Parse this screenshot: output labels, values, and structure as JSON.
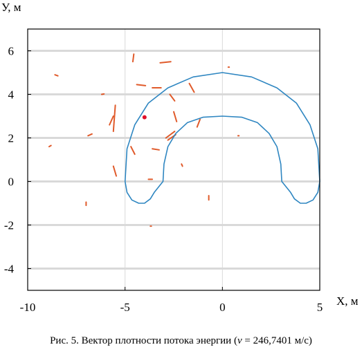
{
  "chart_data": {
    "type": "line",
    "title": "",
    "xlabel": "X, м",
    "ylabel": "У, м",
    "xlim": [
      -10,
      5
    ],
    "ylim": [
      -5,
      7
    ],
    "xticks": [
      -10,
      -5,
      0,
      5
    ],
    "yticks": [
      6,
      4,
      2,
      0,
      -2,
      -4
    ],
    "xtick_labels": [
      "-10",
      "-5",
      "0",
      "5"
    ],
    "ytick_labels": [
      "6",
      "4",
      "2",
      "0",
      "-2",
      "-4"
    ],
    "grid": true,
    "colors": {
      "contour": "#2e86c1",
      "vectors": "#e05a2a",
      "source": "#e0102a",
      "grid": "#d9d9d9"
    },
    "series": [
      {
        "role": "horseshoe-contour",
        "x": [
          -5,
          -4.9,
          -4.65,
          -4.3,
          -4.0,
          -3.7,
          -3.5,
          -3.05,
          -3.0,
          -2.8,
          -2.4,
          -1.8,
          -1.0,
          0,
          1.0,
          1.8,
          2.4,
          2.8,
          3.0,
          3.05,
          3.5,
          3.7,
          4.0,
          4.3,
          4.65,
          4.9,
          5.0,
          4.9,
          4.5,
          3.8,
          2.8,
          1.5,
          0,
          -1.5,
          -2.8,
          -3.8,
          -4.5,
          -4.9,
          -5.0
        ],
        "y": [
          0,
          -0.5,
          -0.85,
          -1.0,
          -1.0,
          -0.8,
          -0.5,
          0,
          0.8,
          1.6,
          2.2,
          2.7,
          2.95,
          3.0,
          2.95,
          2.7,
          2.2,
          1.6,
          0.8,
          0,
          -0.5,
          -0.8,
          -1.0,
          -1.0,
          -0.85,
          -0.5,
          0,
          1.5,
          2.6,
          3.6,
          4.3,
          4.8,
          5.0,
          4.8,
          4.3,
          3.6,
          2.6,
          1.5,
          0
        ]
      }
    ],
    "source_point": {
      "x": -4.0,
      "y": 2.95
    },
    "vectors": [
      {
        "x": -8.6,
        "y": 4.9,
        "dx": 0.15,
        "dy": -0.05
      },
      {
        "x": -4.6,
        "y": 5.5,
        "dx": 0.05,
        "dy": 0.35
      },
      {
        "x": -3.2,
        "y": 5.45,
        "dx": 0.55,
        "dy": 0.05
      },
      {
        "x": -4.4,
        "y": 4.45,
        "dx": 0.45,
        "dy": -0.05
      },
      {
        "x": -3.6,
        "y": 4.3,
        "dx": 0.45,
        "dy": 0.0
      },
      {
        "x": -1.7,
        "y": 4.5,
        "dx": 0.25,
        "dy": -0.4
      },
      {
        "x": -2.7,
        "y": 4.0,
        "dx": 0.25,
        "dy": -0.3
      },
      {
        "x": -6.2,
        "y": 4.0,
        "dx": 0.12,
        "dy": 0.02
      },
      {
        "x": -5.6,
        "y": 2.3,
        "dx": 0.1,
        "dy": 1.2
      },
      {
        "x": -5.8,
        "y": 2.6,
        "dx": 0.2,
        "dy": 0.4
      },
      {
        "x": -2.5,
        "y": 3.2,
        "dx": 0.15,
        "dy": -0.45
      },
      {
        "x": -1.3,
        "y": 2.5,
        "dx": 0.15,
        "dy": 0.35
      },
      {
        "x": -2.4,
        "y": 2.15,
        "dx": -0.4,
        "dy": -0.25
      },
      {
        "x": -2.9,
        "y": 2.0,
        "dx": 0.45,
        "dy": 0.3
      },
      {
        "x": -6.9,
        "y": 2.1,
        "dx": 0.2,
        "dy": 0.08
      },
      {
        "x": -8.9,
        "y": 1.6,
        "dx": 0.1,
        "dy": 0.05
      },
      {
        "x": -4.7,
        "y": 1.6,
        "dx": 0.2,
        "dy": -0.35
      },
      {
        "x": -3.6,
        "y": 1.5,
        "dx": 0.35,
        "dy": -0.05
      },
      {
        "x": -2.1,
        "y": 0.8,
        "dx": 0.05,
        "dy": -0.1
      },
      {
        "x": -5.6,
        "y": 0.7,
        "dx": 0.15,
        "dy": -0.45
      },
      {
        "x": -3.8,
        "y": 0.1,
        "dx": 0.2,
        "dy": 0.0
      },
      {
        "x": -7.0,
        "y": -1.1,
        "dx": 0.0,
        "dy": 0.15
      },
      {
        "x": -0.7,
        "y": -0.85,
        "dx": 0.0,
        "dy": 0.2
      },
      {
        "x": -3.7,
        "y": -2.05,
        "dx": 0.05,
        "dy": 0.0
      },
      {
        "x": 0.8,
        "y": 2.1,
        "dx": 0.05,
        "dy": 0.0
      },
      {
        "x": 0.3,
        "y": 5.25,
        "dx": 0.05,
        "dy": 0.0
      }
    ]
  },
  "caption": {
    "prefix": "Рис. 5. Вектор плотности потока энергии (",
    "symbol": "v",
    "suffix": " = 246,7401 м/с)"
  }
}
